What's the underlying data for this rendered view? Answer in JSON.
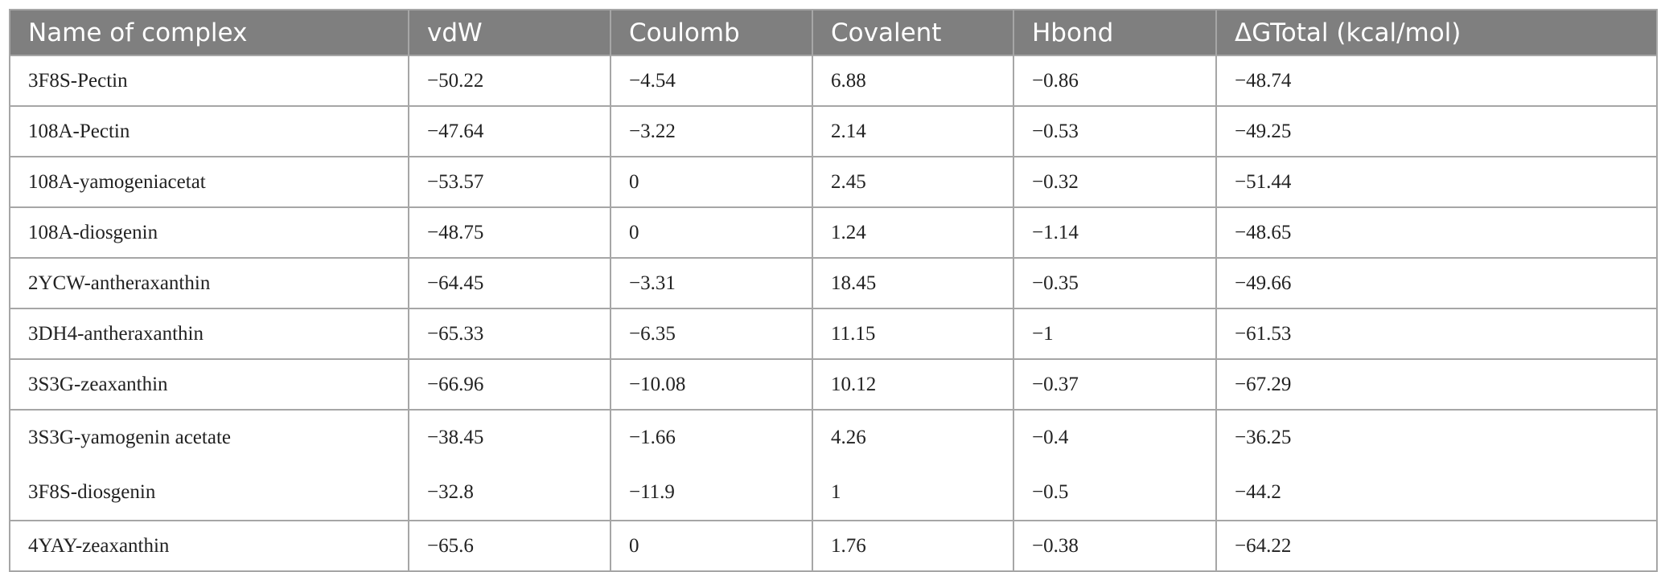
{
  "table": {
    "header": [
      "Name of complex",
      "vdW",
      "Coulomb",
      "Covalent",
      "Hbond",
      "ΔGTotal (kcal/mol)"
    ],
    "rows": [
      [
        "3F8S-Pectin",
        "−50.22",
        "−4.54",
        "6.88",
        "−0.86",
        "−48.74"
      ],
      [
        "108A-Pectin",
        "−47.64",
        "−3.22",
        "2.14",
        "−0.53",
        "−49.25"
      ],
      [
        "108A-yamogeniacetat",
        "−53.57",
        "0",
        "2.45",
        "−0.32",
        "−51.44"
      ],
      [
        "108A-diosgenin",
        "−48.75",
        "0",
        "1.24",
        "−1.14",
        "−48.65"
      ],
      [
        "2YCW-antheraxanthin",
        "−64.45",
        "−3.31",
        "18.45",
        "−0.35",
        "−49.66"
      ],
      [
        "3DH4-antheraxanthin",
        "−65.33",
        "−6.35",
        "11.15",
        "−1",
        "−61.53"
      ],
      [
        "3S3G-zeaxanthin",
        "−66.96",
        "−10.08",
        "10.12",
        "−0.37",
        "−67.29"
      ],
      [
        "3S3G-yamogenin acetate",
        "−38.45",
        "−1.66",
        "4.26",
        "−0.4",
        "−36.25"
      ],
      [
        "3F8S-diosgenin",
        "−32.8",
        "−11.9",
        "1",
        "−0.5",
        "−44.2"
      ],
      [
        "4YAY-zeaxanthin",
        "−65.6",
        "0",
        "1.76",
        "−0.38",
        "−64.22"
      ]
    ]
  }
}
